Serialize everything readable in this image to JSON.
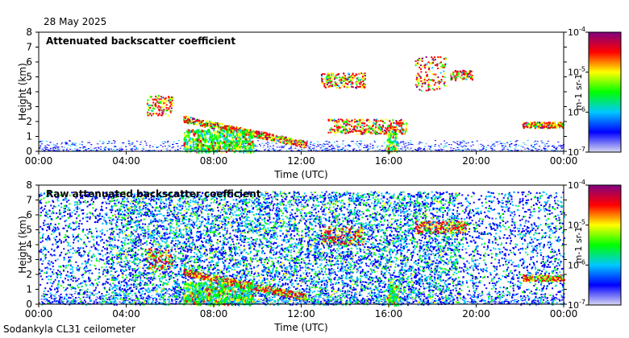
{
  "date": "28 May 2025",
  "footer": "Sodankyla CL31 ceilometer",
  "colors": {
    "colormap": [
      "#d8d8f2",
      "#0000ff",
      "#00c8ff",
      "#00ff00",
      "#ffff00",
      "#ff0000",
      "#800080"
    ]
  },
  "chart_data": [
    {
      "type": "heatmap",
      "title": "Attenuated backscatter coefficient",
      "xlabel": "Time (UTC)",
      "ylabel": "Height (km)",
      "xlim": [
        0,
        24
      ],
      "ylim": [
        0,
        8
      ],
      "x_ticks": [
        "00:00",
        "04:00",
        "08:00",
        "12:00",
        "16:00",
        "20:00",
        "00:00"
      ],
      "y_ticks": [
        "0",
        "1",
        "2",
        "3",
        "4",
        "5",
        "6",
        "7",
        "8"
      ],
      "colorbar": {
        "label": "m-1 sr-1",
        "scale": "log",
        "range": [
          1e-07,
          0.0001
        ],
        "ticks": [
          {
            "base": "10",
            "exp": "-4"
          },
          {
            "base": "10",
            "exp": "-5"
          },
          {
            "base": "10",
            "exp": "-6"
          },
          {
            "base": "10",
            "exp": "-7"
          }
        ]
      },
      "features": [
        {
          "type": "cloud",
          "t": [
            4.9,
            6.1
          ],
          "h": [
            2.4,
            3.8
          ],
          "level": 0.75
        },
        {
          "type": "cloud",
          "t": [
            6.6,
            12.2
          ],
          "h_start": 2.2,
          "h_end": 0.5,
          "level": 0.85
        },
        {
          "type": "cloud",
          "t": [
            12.9,
            14.9
          ],
          "h": [
            4.3,
            5.3
          ],
          "level": 0.8
        },
        {
          "type": "cloud",
          "t": [
            13.2,
            16.8
          ],
          "h": [
            1.2,
            2.2
          ],
          "level": 0.75
        },
        {
          "type": "cloud",
          "t": [
            17.2,
            18.6
          ],
          "h": [
            4.1,
            6.4
          ],
          "level": 0.7
        },
        {
          "type": "cloud",
          "t": [
            18.8,
            19.8
          ],
          "h": [
            4.8,
            5.5
          ],
          "level": 0.8
        },
        {
          "type": "cloud",
          "t": [
            22.1,
            24.0
          ],
          "h": [
            1.6,
            2.0
          ],
          "level": 0.8
        },
        {
          "type": "precipitation",
          "t": [
            6.6,
            9.8
          ],
          "h": [
            0,
            1.5
          ],
          "level": 0.45
        },
        {
          "type": "precipitation",
          "t": [
            15.9,
            16.4
          ],
          "h": [
            0,
            1.4
          ],
          "level": 0.45
        }
      ]
    },
    {
      "type": "heatmap",
      "title": "Raw attenuated backscatter coefficient",
      "xlabel": "Time (UTC)",
      "ylabel": "Height (km)",
      "xlim": [
        0,
        24
      ],
      "ylim": [
        0,
        8
      ],
      "x_ticks": [
        "00:00",
        "04:00",
        "08:00",
        "12:00",
        "16:00",
        "20:00",
        "00:00"
      ],
      "y_ticks": [
        "0",
        "1",
        "2",
        "3",
        "4",
        "5",
        "6",
        "7",
        "8"
      ],
      "colorbar": {
        "label": "m-1 sr-1",
        "scale": "log",
        "range": [
          1e-07,
          0.0001
        ],
        "ticks": [
          {
            "base": "10",
            "exp": "-4"
          },
          {
            "base": "10",
            "exp": "-5"
          },
          {
            "base": "10",
            "exp": "-6"
          },
          {
            "base": "10",
            "exp": "-7"
          }
        ]
      },
      "features": [
        {
          "type": "noise",
          "t": [
            0,
            24
          ],
          "h": [
            0,
            7.6
          ],
          "level": 0.3
        },
        {
          "type": "noise",
          "t": [
            3.2,
            19.2
          ],
          "h": [
            0,
            7.6
          ],
          "level": 0.42
        },
        {
          "type": "cloud",
          "t": [
            4.9,
            6.1
          ],
          "h": [
            2.4,
            3.8
          ],
          "level": 0.8
        },
        {
          "type": "cloud",
          "t": [
            6.6,
            12.2
          ],
          "h_start": 2.2,
          "h_end": 0.5,
          "level": 0.85
        },
        {
          "type": "cloud",
          "t": [
            12.9,
            14.9
          ],
          "h": [
            4.0,
            5.3
          ],
          "level": 0.75
        },
        {
          "type": "cloud",
          "t": [
            17.2,
            19.6
          ],
          "h": [
            4.8,
            5.6
          ],
          "level": 0.75
        },
        {
          "type": "cloud",
          "t": [
            22.1,
            24.0
          ],
          "h": [
            1.6,
            2.0
          ],
          "level": 0.8
        },
        {
          "type": "precipitation",
          "t": [
            6.6,
            9.8
          ],
          "h": [
            0,
            1.5
          ],
          "level": 0.45
        },
        {
          "type": "precipitation",
          "t": [
            15.9,
            16.4
          ],
          "h": [
            0,
            1.4
          ],
          "level": 0.45
        }
      ]
    }
  ]
}
